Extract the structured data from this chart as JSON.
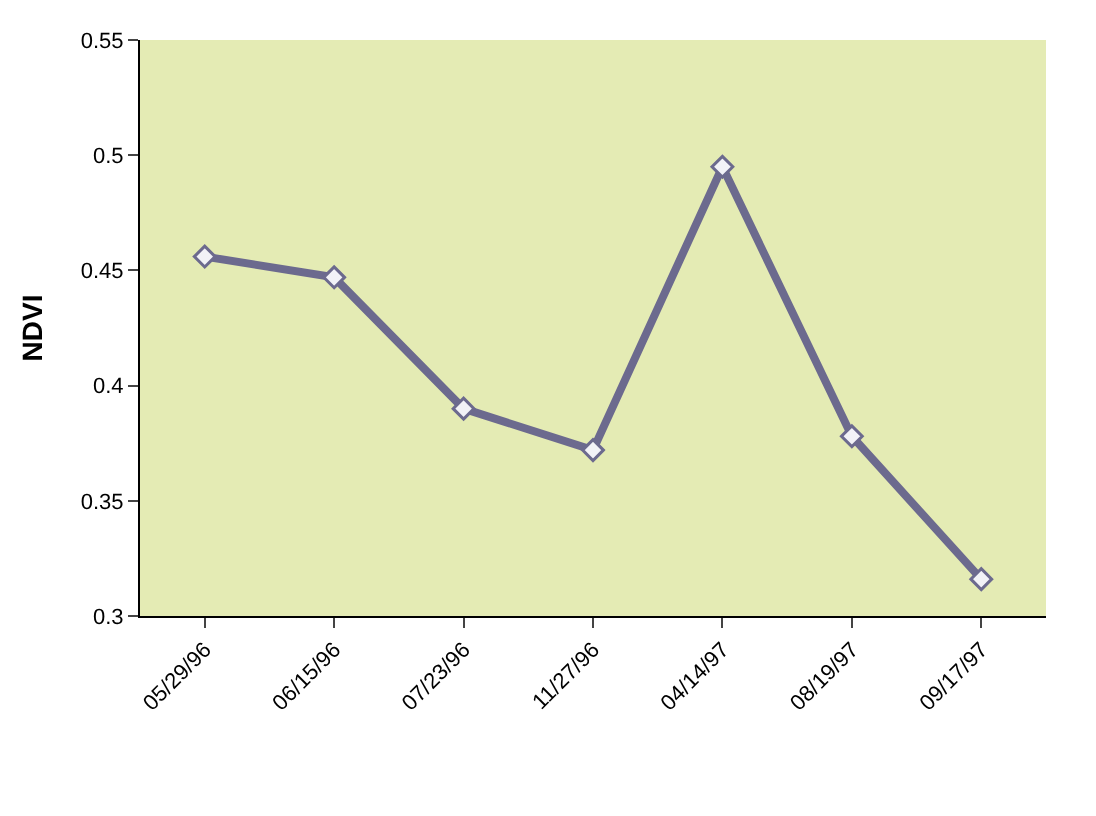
{
  "chart_data": {
    "type": "line",
    "ylabel": "NDVI",
    "categories": [
      "05/29/96",
      "06/15/96",
      "07/23/96",
      "11/27/96",
      "04/14/97",
      "08/19/97",
      "09/17/97"
    ],
    "series": [
      {
        "color": "#6c6a8e",
        "values": [
          0.456,
          0.447,
          0.39,
          0.372,
          0.495,
          0.378,
          0.316
        ]
      }
    ],
    "ylim": [
      0.3,
      0.55
    ],
    "yticks": [
      0.3,
      0.35,
      0.4,
      0.45,
      0.5,
      0.55
    ],
    "grid": false,
    "legend": false,
    "marker": "diamond",
    "line_style": "solid"
  }
}
